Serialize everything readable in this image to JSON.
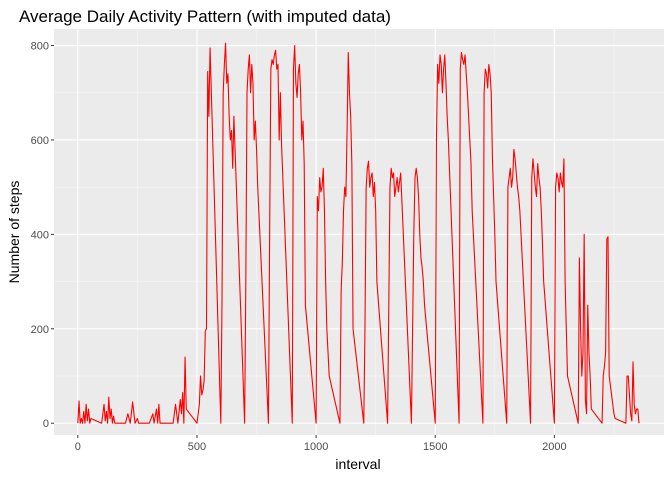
{
  "chart_data": {
    "type": "line",
    "title": "Average Daily Activity Pattern (with imputed data)",
    "xlabel": "interval",
    "ylabel": "Number of steps",
    "xlim": [
      -100,
      2460
    ],
    "ylim": [
      -25,
      835
    ],
    "x_ticks": [
      0,
      500,
      1000,
      1500,
      2000
    ],
    "x_tick_labels": [
      "0",
      "500",
      "1000",
      "1500",
      "2000"
    ],
    "y_ticks": [
      0,
      200,
      400,
      600,
      800
    ],
    "y_tick_labels": [
      "0",
      "200",
      "400",
      "600",
      "800"
    ],
    "grid": true,
    "legend": "none",
    "series": [
      {
        "color": "#ff0000",
        "points": [
          [
            0,
            0
          ],
          [
            5,
            47
          ],
          [
            10,
            0
          ],
          [
            15,
            10
          ],
          [
            20,
            0
          ],
          [
            25,
            25
          ],
          [
            30,
            0
          ],
          [
            35,
            40
          ],
          [
            40,
            5
          ],
          [
            45,
            30
          ],
          [
            50,
            0
          ],
          [
            55,
            10
          ],
          [
            100,
            0
          ],
          [
            105,
            20
          ],
          [
            110,
            40
          ],
          [
            115,
            5
          ],
          [
            120,
            25
          ],
          [
            125,
            0
          ],
          [
            130,
            55
          ],
          [
            135,
            10
          ],
          [
            140,
            30
          ],
          [
            145,
            0
          ],
          [
            150,
            15
          ],
          [
            155,
            0
          ],
          [
            200,
            0
          ],
          [
            210,
            20
          ],
          [
            220,
            0
          ],
          [
            230,
            45
          ],
          [
            240,
            0
          ],
          [
            250,
            10
          ],
          [
            255,
            0
          ],
          [
            300,
            0
          ],
          [
            315,
            20
          ],
          [
            320,
            0
          ],
          [
            325,
            15
          ],
          [
            330,
            30
          ],
          [
            335,
            0
          ],
          [
            340,
            40
          ],
          [
            345,
            0
          ],
          [
            355,
            0
          ],
          [
            400,
            0
          ],
          [
            410,
            40
          ],
          [
            420,
            0
          ],
          [
            430,
            50
          ],
          [
            435,
            20
          ],
          [
            440,
            65
          ],
          [
            445,
            0
          ],
          [
            450,
            140
          ],
          [
            455,
            30
          ],
          [
            500,
            0
          ],
          [
            505,
            20
          ],
          [
            510,
            40
          ],
          [
            515,
            100
          ],
          [
            520,
            60
          ],
          [
            525,
            70
          ],
          [
            530,
            90
          ],
          [
            535,
            195
          ],
          [
            540,
            200
          ],
          [
            545,
            745
          ],
          [
            550,
            650
          ],
          [
            555,
            795
          ],
          [
            600,
            0
          ],
          [
            605,
            250
          ],
          [
            610,
            700
          ],
          [
            615,
            760
          ],
          [
            620,
            805
          ],
          [
            625,
            720
          ],
          [
            630,
            740
          ],
          [
            635,
            650
          ],
          [
            640,
            600
          ],
          [
            645,
            620
          ],
          [
            650,
            540
          ],
          [
            655,
            650
          ],
          [
            700,
            0
          ],
          [
            705,
            300
          ],
          [
            710,
            700
          ],
          [
            715,
            750
          ],
          [
            720,
            780
          ],
          [
            725,
            700
          ],
          [
            730,
            760
          ],
          [
            735,
            720
          ],
          [
            740,
            600
          ],
          [
            745,
            640
          ],
          [
            750,
            580
          ],
          [
            755,
            500
          ],
          [
            800,
            0
          ],
          [
            805,
            400
          ],
          [
            810,
            750
          ],
          [
            815,
            770
          ],
          [
            820,
            760
          ],
          [
            825,
            780
          ],
          [
            830,
            790
          ],
          [
            835,
            750
          ],
          [
            840,
            760
          ],
          [
            845,
            600
          ],
          [
            850,
            700
          ],
          [
            855,
            590
          ],
          [
            900,
            0
          ],
          [
            905,
            750
          ],
          [
            910,
            800
          ],
          [
            915,
            720
          ],
          [
            920,
            690
          ],
          [
            925,
            740
          ],
          [
            930,
            760
          ],
          [
            935,
            700
          ],
          [
            940,
            600
          ],
          [
            945,
            640
          ],
          [
            950,
            550
          ],
          [
            955,
            250
          ],
          [
            1000,
            0
          ],
          [
            1005,
            480
          ],
          [
            1010,
            450
          ],
          [
            1015,
            520
          ],
          [
            1020,
            490
          ],
          [
            1025,
            500
          ],
          [
            1030,
            540
          ],
          [
            1035,
            450
          ],
          [
            1040,
            300
          ],
          [
            1045,
            200
          ],
          [
            1050,
            150
          ],
          [
            1055,
            100
          ],
          [
            1100,
            0
          ],
          [
            1105,
            280
          ],
          [
            1110,
            340
          ],
          [
            1115,
            450
          ],
          [
            1120,
            500
          ],
          [
            1125,
            480
          ],
          [
            1130,
            620
          ],
          [
            1135,
            785
          ],
          [
            1140,
            700
          ],
          [
            1145,
            650
          ],
          [
            1150,
            550
          ],
          [
            1155,
            200
          ],
          [
            1200,
            0
          ],
          [
            1205,
            200
          ],
          [
            1210,
            500
          ],
          [
            1215,
            540
          ],
          [
            1220,
            555
          ],
          [
            1225,
            500
          ],
          [
            1230,
            520
          ],
          [
            1235,
            530
          ],
          [
            1240,
            480
          ],
          [
            1245,
            510
          ],
          [
            1250,
            450
          ],
          [
            1255,
            300
          ],
          [
            1300,
            0
          ],
          [
            1305,
            250
          ],
          [
            1310,
            500
          ],
          [
            1315,
            540
          ],
          [
            1320,
            520
          ],
          [
            1325,
            530
          ],
          [
            1330,
            480
          ],
          [
            1335,
            500
          ],
          [
            1340,
            520
          ],
          [
            1345,
            490
          ],
          [
            1350,
            510
          ],
          [
            1355,
            530
          ],
          [
            1400,
            0
          ],
          [
            1405,
            200
          ],
          [
            1410,
            400
          ],
          [
            1415,
            520
          ],
          [
            1420,
            540
          ],
          [
            1425,
            520
          ],
          [
            1430,
            480
          ],
          [
            1435,
            400
          ],
          [
            1440,
            350
          ],
          [
            1445,
            330
          ],
          [
            1450,
            300
          ],
          [
            1455,
            250
          ],
          [
            1500,
            0
          ],
          [
            1505,
            600
          ],
          [
            1510,
            760
          ],
          [
            1515,
            720
          ],
          [
            1520,
            780
          ],
          [
            1525,
            760
          ],
          [
            1530,
            700
          ],
          [
            1535,
            750
          ],
          [
            1540,
            780
          ],
          [
            1545,
            720
          ],
          [
            1550,
            650
          ],
          [
            1555,
            600
          ],
          [
            1600,
            0
          ],
          [
            1605,
            750
          ],
          [
            1610,
            785
          ],
          [
            1615,
            770
          ],
          [
            1620,
            760
          ],
          [
            1625,
            780
          ],
          [
            1630,
            740
          ],
          [
            1635,
            700
          ],
          [
            1640,
            650
          ],
          [
            1645,
            600
          ],
          [
            1650,
            550
          ],
          [
            1655,
            450
          ],
          [
            1700,
            0
          ],
          [
            1705,
            700
          ],
          [
            1710,
            750
          ],
          [
            1715,
            740
          ],
          [
            1720,
            710
          ],
          [
            1725,
            760
          ],
          [
            1730,
            740
          ],
          [
            1735,
            700
          ],
          [
            1740,
            560
          ],
          [
            1745,
            480
          ],
          [
            1750,
            400
          ],
          [
            1755,
            300
          ],
          [
            1800,
            0
          ],
          [
            1805,
            500
          ],
          [
            1810,
            520
          ],
          [
            1815,
            540
          ],
          [
            1820,
            500
          ],
          [
            1825,
            520
          ],
          [
            1830,
            580
          ],
          [
            1835,
            560
          ],
          [
            1840,
            530
          ],
          [
            1845,
            500
          ],
          [
            1850,
            480
          ],
          [
            1855,
            450
          ],
          [
            1900,
            0
          ],
          [
            1905,
            520
          ],
          [
            1910,
            560
          ],
          [
            1915,
            530
          ],
          [
            1920,
            500
          ],
          [
            1925,
            480
          ],
          [
            1930,
            550
          ],
          [
            1935,
            520
          ],
          [
            1940,
            500
          ],
          [
            1945,
            450
          ],
          [
            1950,
            380
          ],
          [
            1955,
            300
          ],
          [
            2000,
            0
          ],
          [
            2005,
            500
          ],
          [
            2010,
            530
          ],
          [
            2015,
            520
          ],
          [
            2020,
            490
          ],
          [
            2025,
            530
          ],
          [
            2030,
            510
          ],
          [
            2035,
            500
          ],
          [
            2040,
            560
          ],
          [
            2045,
            300
          ],
          [
            2050,
            200
          ],
          [
            2055,
            100
          ],
          [
            2100,
            0
          ],
          [
            2105,
            350
          ],
          [
            2110,
            200
          ],
          [
            2115,
            100
          ],
          [
            2120,
            150
          ],
          [
            2125,
            400
          ],
          [
            2130,
            50
          ],
          [
            2135,
            20
          ],
          [
            2140,
            250
          ],
          [
            2145,
            150
          ],
          [
            2150,
            100
          ],
          [
            2155,
            30
          ],
          [
            2200,
            0
          ],
          [
            2205,
            100
          ],
          [
            2210,
            120
          ],
          [
            2215,
            150
          ],
          [
            2220,
            390
          ],
          [
            2225,
            395
          ],
          [
            2230,
            100
          ],
          [
            2235,
            80
          ],
          [
            2240,
            60
          ],
          [
            2245,
            40
          ],
          [
            2250,
            20
          ],
          [
            2255,
            10
          ],
          [
            2300,
            0
          ],
          [
            2305,
            100
          ],
          [
            2310,
            100
          ],
          [
            2315,
            60
          ],
          [
            2320,
            20
          ],
          [
            2325,
            5
          ],
          [
            2330,
            130
          ],
          [
            2335,
            40
          ],
          [
            2340,
            20
          ],
          [
            2345,
            30
          ],
          [
            2350,
            30
          ],
          [
            2355,
            0
          ]
        ]
      }
    ]
  }
}
